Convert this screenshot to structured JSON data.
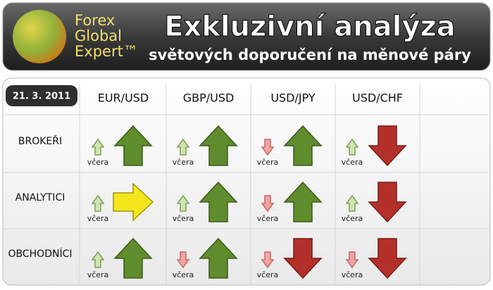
{
  "header": {
    "logo": [
      "Forex",
      "Global",
      "Expert™"
    ],
    "title": "Exkluzivní analýza",
    "subtitle": "světových doporučení na měnové páry"
  },
  "table": {
    "date": "21. 3. 2011",
    "yesterday_label": "včera",
    "columns": [
      "EUR/USD",
      "GBP/USD",
      "USD/JPY",
      "USD/CHF"
    ],
    "rows": [
      {
        "label": "BROKEŘI",
        "cells": [
          {
            "yesterday": "up",
            "today": "up"
          },
          {
            "yesterday": "up",
            "today": "up"
          },
          {
            "yesterday": "down",
            "today": "up"
          },
          {
            "yesterday": "up",
            "today": "down"
          }
        ]
      },
      {
        "label": "ANALYTICI",
        "cells": [
          {
            "yesterday": "up",
            "today": "right"
          },
          {
            "yesterday": "up",
            "today": "up"
          },
          {
            "yesterday": "down",
            "today": "up"
          },
          {
            "yesterday": "up",
            "today": "down"
          }
        ]
      },
      {
        "label": "OBCHODNÍCI",
        "cells": [
          {
            "yesterday": "up",
            "today": "up"
          },
          {
            "yesterday": "down",
            "today": "up"
          },
          {
            "yesterday": "down",
            "today": "down"
          },
          {
            "yesterday": "down",
            "today": "down"
          }
        ]
      }
    ]
  }
}
